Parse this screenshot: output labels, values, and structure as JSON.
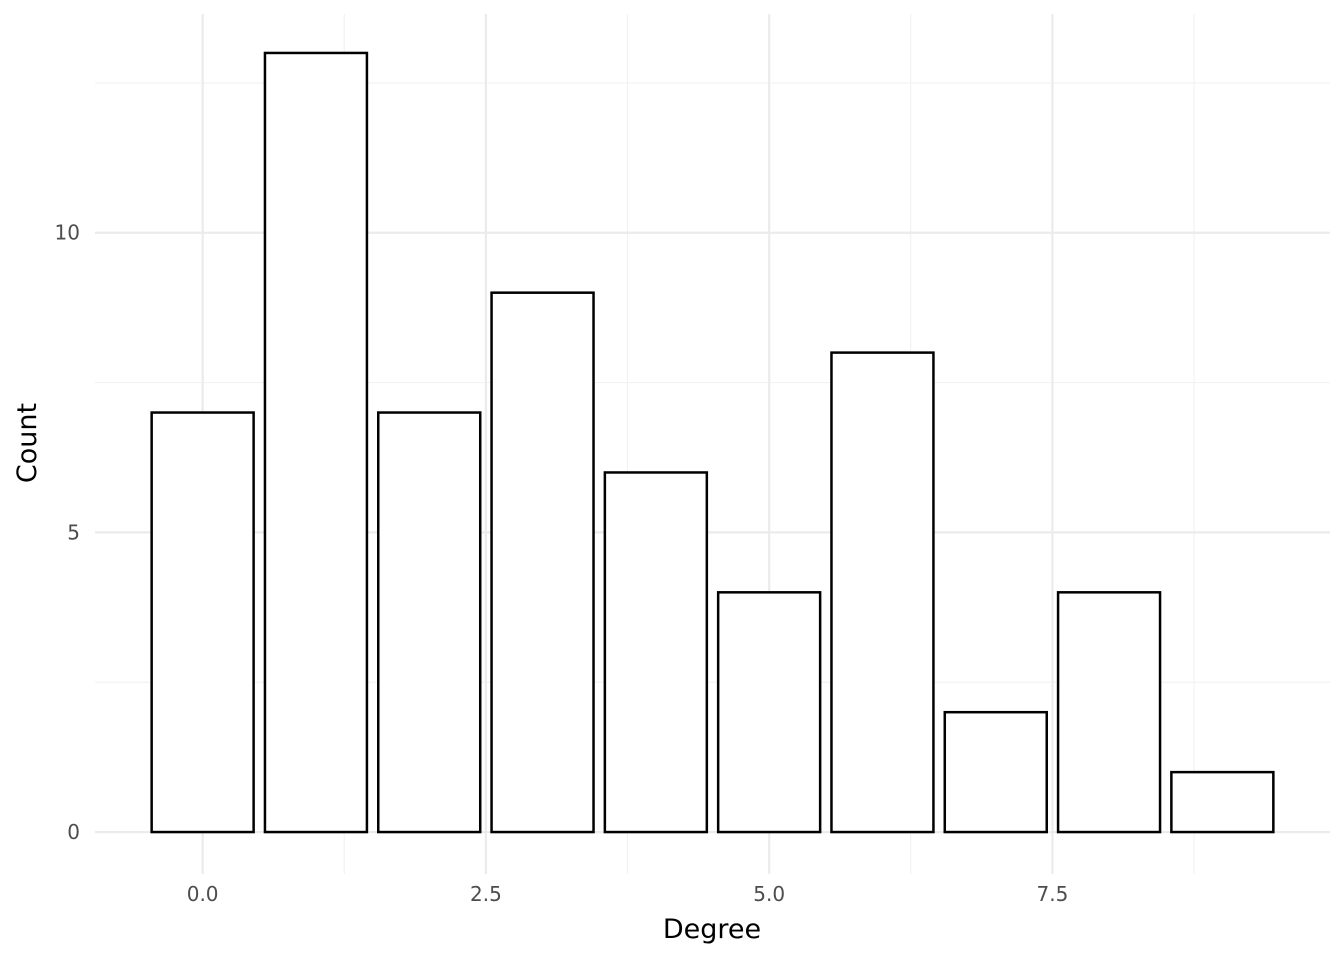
{
  "chart_data": {
    "type": "bar",
    "title": "",
    "xlabel": "Degree",
    "ylabel": "Count",
    "x": [
      0,
      1,
      2,
      3,
      4,
      5,
      6,
      7,
      8,
      9
    ],
    "values": [
      7,
      13,
      7,
      9,
      6,
      4,
      8,
      2,
      4,
      1
    ],
    "xlim": [
      -0.95,
      9.95
    ],
    "ylim": [
      -0.7,
      13.65
    ],
    "x_ticks": [
      0,
      2.5,
      5,
      7.5
    ],
    "x_tick_labels": [
      "0.0",
      "2.5",
      "5.0",
      "7.5"
    ],
    "x_minor_ticks": [
      1.25,
      3.75,
      6.25,
      8.75
    ],
    "y_ticks": [
      0,
      5,
      10
    ],
    "y_tick_labels": [
      "0",
      "5",
      "10"
    ],
    "y_minor_ticks": [
      2.5,
      7.5,
      12.5
    ],
    "bar_width": 0.9,
    "grid": true,
    "legend": "none",
    "colors": {
      "bar_fill": "#ffffff",
      "bar_stroke": "#000000",
      "grid": "#ebebeb",
      "tick_text": "#4d4d4d",
      "title_text": "#000000"
    }
  }
}
